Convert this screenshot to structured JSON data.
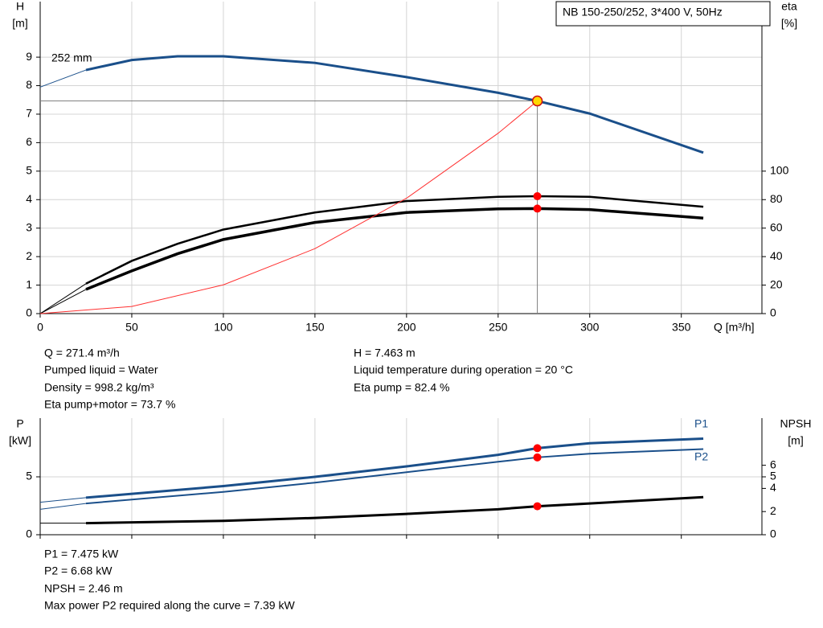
{
  "chart_data": [
    {
      "type": "line",
      "title": "NB 150-250/252, 3*400 V, 50Hz",
      "x_label": "Q [m³/h]",
      "y_label": "H",
      "y_unit": "[m]",
      "y2_label": "eta",
      "y2_unit": "[%]",
      "xlim": [
        0,
        394
      ],
      "xticks": [
        0,
        50,
        100,
        150,
        200,
        250,
        300,
        350
      ],
      "show_xtick_labels": true,
      "ylim": [
        0,
        10.95
      ],
      "yticks": [
        0,
        1,
        2,
        3,
        4,
        5,
        6,
        7,
        8,
        9
      ],
      "y2lim": [
        0,
        219
      ],
      "y2ticks": [
        0,
        20,
        40,
        60,
        80,
        100
      ],
      "grid": true,
      "operating_x": 271.4,
      "series": [
        {
          "color": "#1a4f8a",
          "width": 1,
          "x": [
            0,
            25
          ],
          "values": [
            7.95,
            8.55
          ]
        },
        {
          "name": "252 mm",
          "color": "#1a4f8a",
          "width": 3,
          "marker_color": "#ffd700",
          "x": [
            25,
            50,
            75,
            100,
            150,
            200,
            250,
            271.4,
            300,
            362
          ],
          "values": [
            8.55,
            8.9,
            9.03,
            9.03,
            8.8,
            8.3,
            7.75,
            7.463,
            7.02,
            5.65
          ]
        },
        {
          "color": "#000000",
          "width": 1,
          "axis": "y2",
          "x": [
            0,
            25
          ],
          "values": [
            0,
            21
          ]
        },
        {
          "color": "#000000",
          "width": 2.5,
          "axis": "y2",
          "marker_color": "#ff0000",
          "x": [
            25,
            50,
            75,
            100,
            150,
            200,
            250,
            271.4,
            300,
            362
          ],
          "values": [
            21,
            37,
            49,
            59,
            71,
            79,
            82,
            82.4,
            82,
            75
          ]
        },
        {
          "color": "#000000",
          "width": 1,
          "axis": "y2",
          "x": [
            0,
            25
          ],
          "values": [
            0,
            17
          ]
        },
        {
          "color": "#000000",
          "width": 3.5,
          "axis": "y2",
          "marker_color": "#ff0000",
          "x": [
            25,
            50,
            75,
            100,
            150,
            200,
            250,
            271.4,
            300,
            362
          ],
          "values": [
            17,
            30,
            42,
            52,
            64,
            71,
            73.5,
            73.7,
            73,
            67
          ]
        },
        {
          "color": "#ff3030",
          "width": 1,
          "x": [
            0,
            50,
            100,
            150,
            200,
            250,
            271.4
          ],
          "values": [
            0,
            0.25,
            1.01,
            2.28,
            4.05,
            6.33,
            7.463
          ]
        }
      ]
    },
    {
      "type": "line",
      "y_label": "P",
      "y_unit": "[kW]",
      "y2_label": "NPSH",
      "y2_unit": "[m]",
      "xlim": [
        0,
        394
      ],
      "xticks": [
        0,
        50,
        100,
        150,
        200,
        250,
        300,
        350
      ],
      "show_xtick_labels": false,
      "ylim": [
        0,
        10.07
      ],
      "yticks": [
        0,
        5
      ],
      "y2lim": [
        0,
        10.07
      ],
      "y2ticks": [
        0,
        2,
        4,
        5,
        6
      ],
      "grid": true,
      "operating_x": 271.4,
      "series": [
        {
          "color": "#1a4f8a",
          "width": 1,
          "x": [
            0,
            25
          ],
          "values": [
            2.8,
            3.2
          ]
        },
        {
          "name": "P1",
          "color": "#1a4f8a",
          "width": 3,
          "marker_color": "#ff0000",
          "x": [
            25,
            100,
            150,
            200,
            250,
            271.4,
            300,
            362
          ],
          "values": [
            3.2,
            4.2,
            5.0,
            5.9,
            6.9,
            7.475,
            7.9,
            8.3
          ]
        },
        {
          "color": "#1a4f8a",
          "width": 1,
          "x": [
            0,
            25
          ],
          "values": [
            2.2,
            2.7
          ]
        },
        {
          "name": "P2",
          "color": "#1a4f8a",
          "width": 2,
          "marker_color": "#ff0000",
          "x": [
            25,
            100,
            150,
            200,
            250,
            271.4,
            300,
            362
          ],
          "values": [
            2.7,
            3.7,
            4.5,
            5.4,
            6.3,
            6.68,
            7.0,
            7.4
          ]
        },
        {
          "color": "#000000",
          "width": 1,
          "axis": "y2",
          "x": [
            0,
            25
          ],
          "values": [
            1.0,
            1.0
          ]
        },
        {
          "color": "#000000",
          "width": 3,
          "axis": "y2",
          "marker_color": "#ff0000",
          "x": [
            25,
            100,
            150,
            200,
            250,
            271.4,
            300,
            362
          ],
          "values": [
            1.0,
            1.2,
            1.45,
            1.8,
            2.2,
            2.46,
            2.7,
            3.25
          ]
        }
      ]
    }
  ],
  "readouts": {
    "top_left": [
      "Q = 271.4 m³/h",
      "Pumped liquid = Water",
      "Density = 998.2 kg/m³",
      "Eta pump+motor = 73.7 %"
    ],
    "top_right": [
      "H = 7.463 m",
      "Liquid temperature during operation = 20 °C",
      "Eta pump = 82.4 %"
    ],
    "bottom": [
      "P1 = 7.475 kW",
      "P2 = 6.68 kW",
      "NPSH = 2.46 m",
      "Max power P2 required along the curve = 7.39 kW"
    ]
  }
}
